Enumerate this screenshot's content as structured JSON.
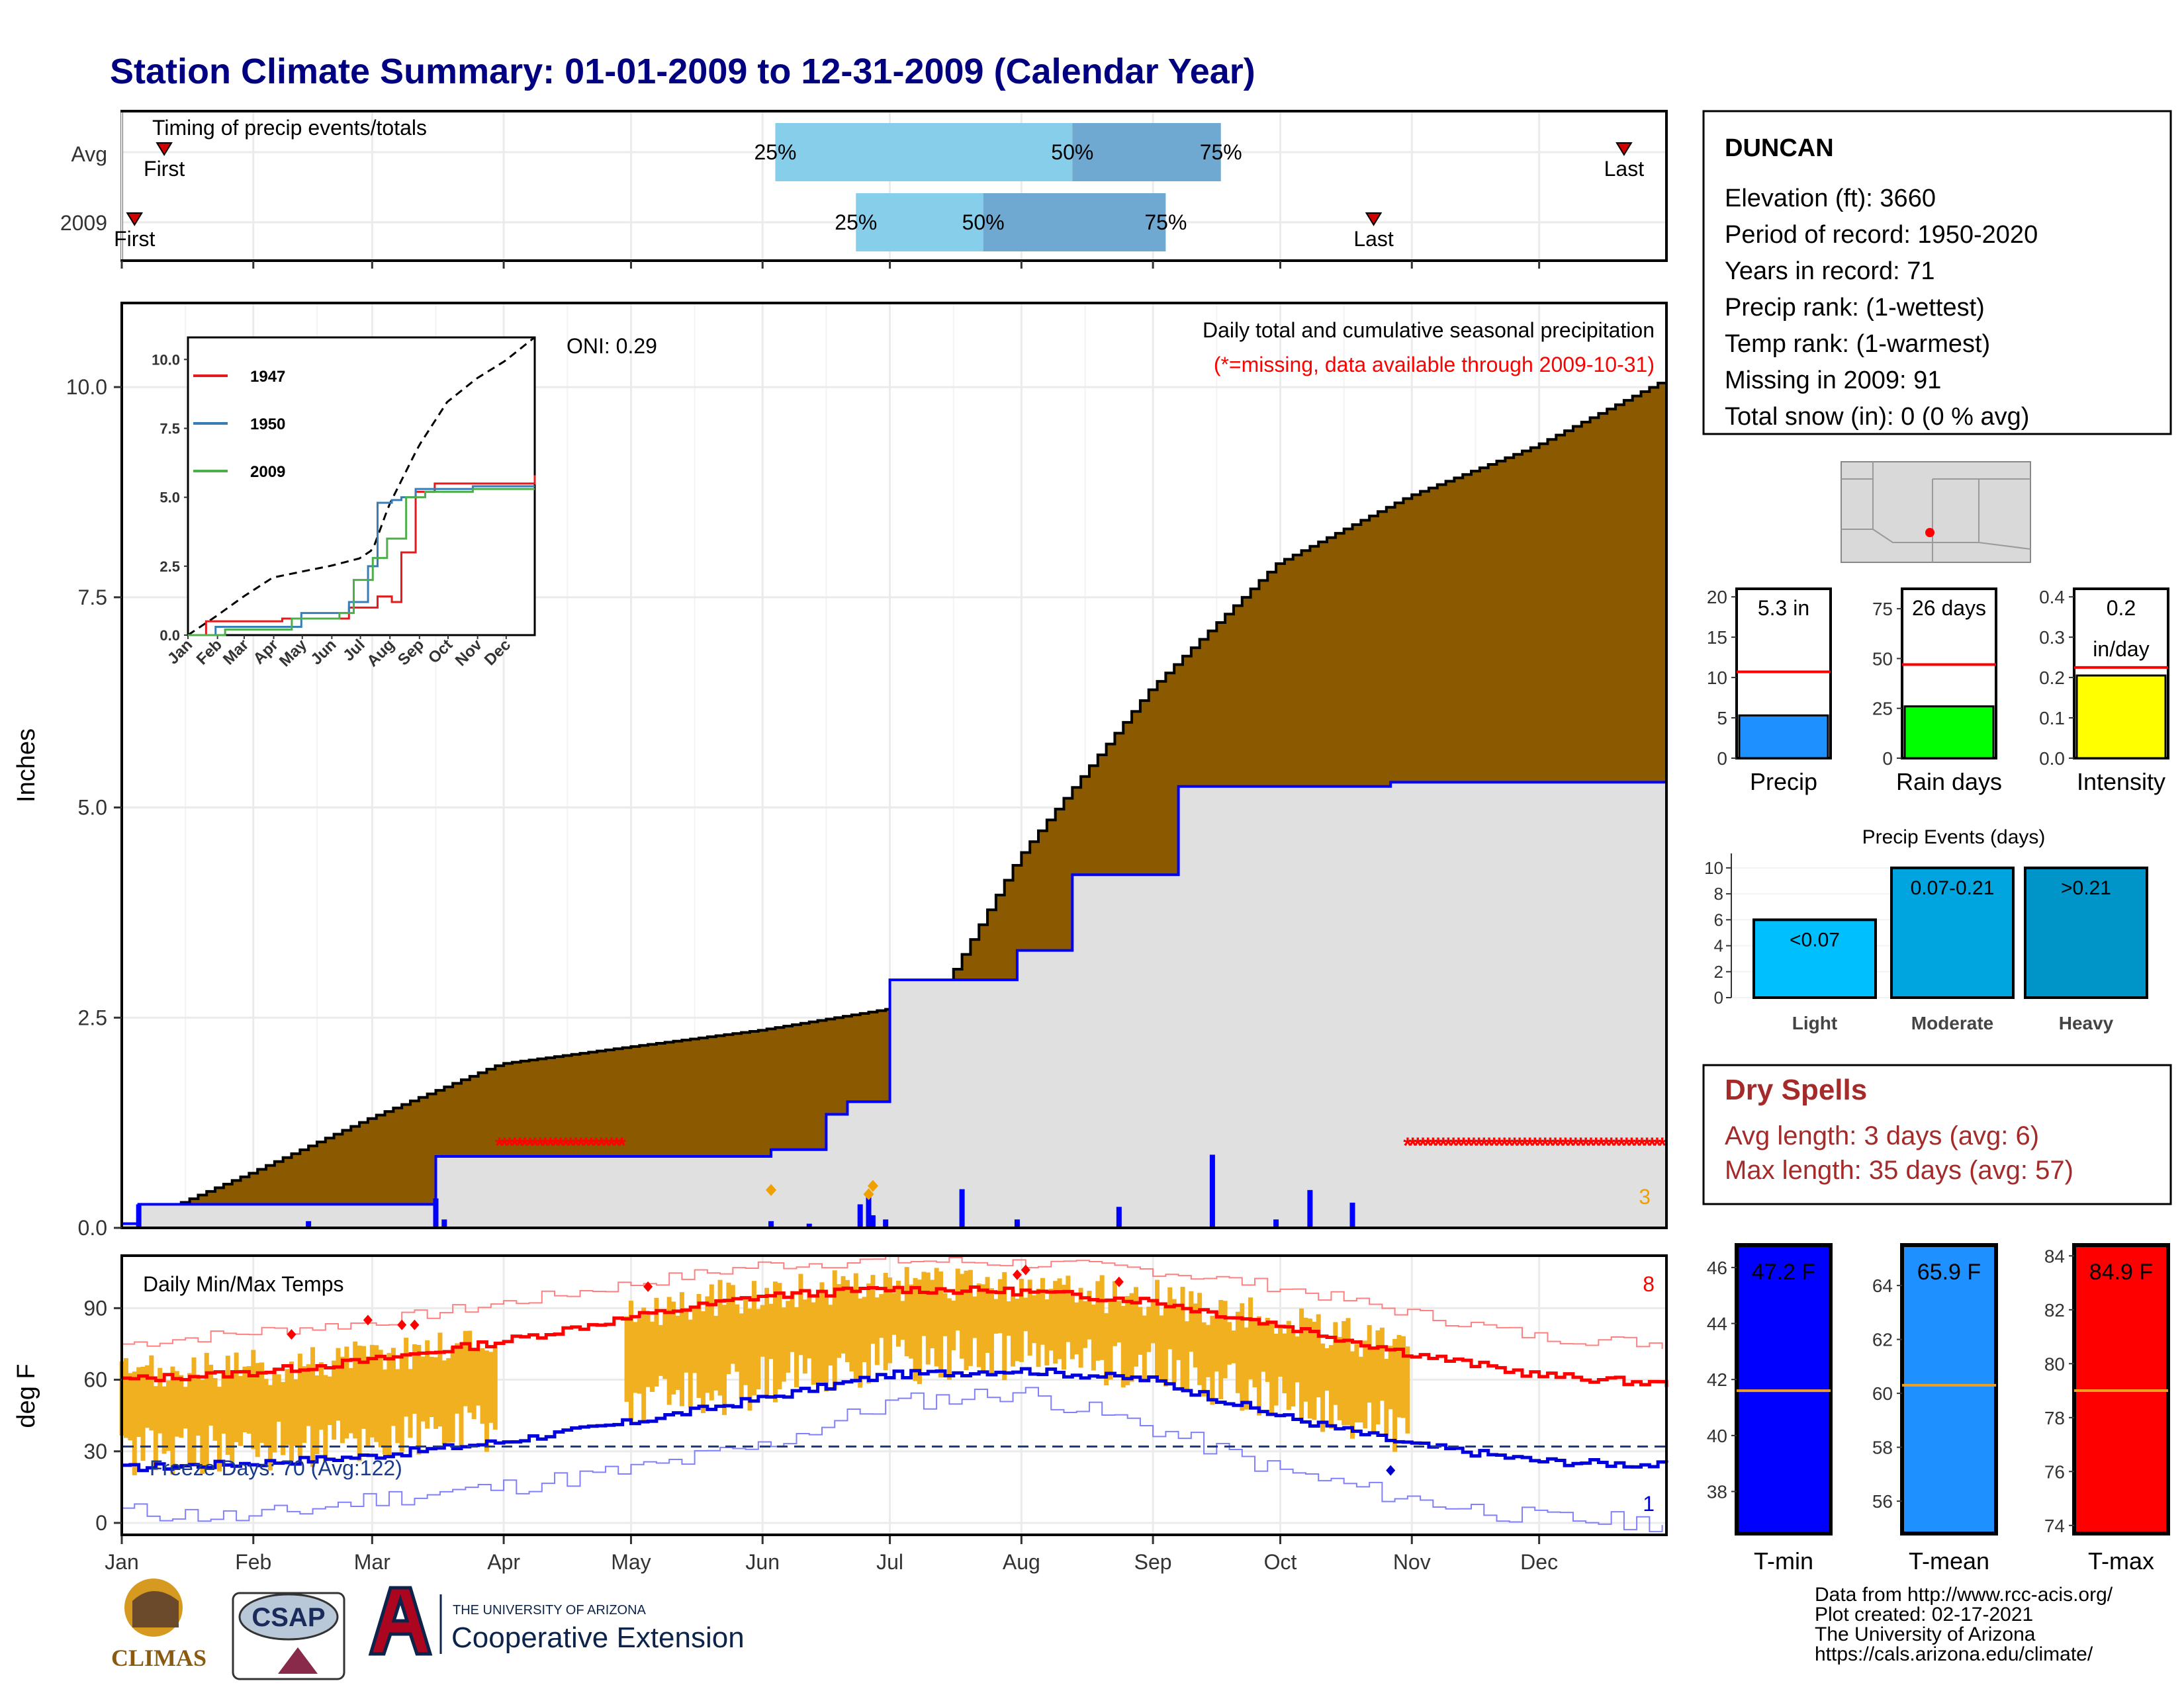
{
  "title": "Station Climate Summary: 01-01-2009 to 12-31-2009 (Calendar Year)",
  "colors": {
    "title": "#000080",
    "cum_avg": "#8B5A00",
    "cum_2009": "#e0e0e0",
    "line_2009": "#0000ff",
    "missing": "#ff0000",
    "temp_bars": "#f0b020"
  },
  "timing": {
    "label": "Timing of precip events/totals",
    "rows": [
      {
        "name": "Avg",
        "first_label": "First",
        "last_label": "Last",
        "first_doy": 11,
        "last_doy": 355,
        "p25": 155,
        "p50": 225,
        "p75": 260
      },
      {
        "name": "2009",
        "first_label": "First",
        "last_label": "Last",
        "first_doy": 4,
        "last_doy": 296,
        "p25": 174,
        "p50": 204,
        "p75": 247
      }
    ],
    "pct_labels": [
      "25%",
      "50%",
      "75%"
    ]
  },
  "months": [
    "Jan",
    "Feb",
    "Mar",
    "Apr",
    "May",
    "Jun",
    "Jul",
    "Aug",
    "Sep",
    "Oct",
    "Nov",
    "Dec"
  ],
  "precip_panel": {
    "ylabel": "Inches",
    "y_ticks": [
      "0.0",
      "2.5",
      "5.0",
      "7.5",
      "10.0"
    ],
    "oni": "ONI: 0.29",
    "subtitle": "Daily total and cumulative seasonal precipitation",
    "missing_note": "(*=missing, data available through 2009-10-31)",
    "count_label": "3"
  },
  "inset": {
    "y_ticks": [
      "0.0",
      "2.5",
      "5.0",
      "7.5",
      "10.0"
    ],
    "x_ticks": [
      "Jan",
      "Feb",
      "Mar",
      "Apr",
      "May",
      "Jun",
      "Jul",
      "Aug",
      "Sep",
      "Oct",
      "Nov",
      "Dec"
    ],
    "legend": [
      {
        "name": "1947",
        "color": "#e41a1c"
      },
      {
        "name": "1950",
        "color": "#377eb8"
      },
      {
        "name": "2009",
        "color": "#4daf4a"
      }
    ]
  },
  "temp_panel": {
    "ylabel": "deg F",
    "title": "Daily Min/Max Temps",
    "y_ticks": [
      "0",
      "30",
      "60",
      "90"
    ],
    "freeze_label": "Freeze Days: 70 (Avg:122)",
    "count_hi": "8",
    "count_lo": "1"
  },
  "station": {
    "name": "DUNCAN",
    "lines": [
      "Elevation (ft): 3660",
      "Period of record: 1950-2020",
      "Years in record: 71",
      "Precip rank:  (1-wettest)",
      "Temp rank:  (1-warmest)",
      "Missing in 2009: 91",
      "Total snow (in): 0 (0 % avg)"
    ]
  },
  "mini_bars": [
    {
      "label": "Precip",
      "value_text": "5.3 in",
      "value": 5.3,
      "avg": 10.7,
      "max": 21,
      "ticks": [
        "0",
        "5",
        "10",
        "15",
        "20"
      ],
      "tick_vals": [
        0,
        5,
        10,
        15,
        20
      ],
      "color": "#1e90ff"
    },
    {
      "label": "Rain days",
      "value_text": "26 days",
      "value": 26,
      "avg": 47,
      "max": 85,
      "ticks": [
        "0",
        "25",
        "50",
        "75"
      ],
      "tick_vals": [
        0,
        25,
        50,
        75
      ],
      "color": "#00ff00"
    },
    {
      "label": "Intensity",
      "value_text": "0.2",
      "value_text2": "in/day",
      "value": 0.205,
      "avg": 0.225,
      "max": 0.42,
      "ticks": [
        "0.0",
        "0.1",
        "0.2",
        "0.3",
        "0.4"
      ],
      "tick_vals": [
        0,
        0.1,
        0.2,
        0.3,
        0.4
      ],
      "color": "#ffff00"
    }
  ],
  "events": {
    "title": "Precip Events (days)",
    "y_ticks": [
      "0",
      "2",
      "4",
      "6",
      "8",
      "10"
    ],
    "bars": [
      {
        "label": "Light",
        "text": "<0.07",
        "value": 6,
        "color": "#00bfff"
      },
      {
        "label": "Moderate",
        "text": "0.07-0.21",
        "value": 10,
        "color": "#00a5e0"
      },
      {
        "label": "Heavy",
        "text": ">0.21",
        "value": 10,
        "color": "#0095c8"
      }
    ]
  },
  "dry_spells": {
    "title": "Dry Spells",
    "avg": "Avg length: 3 days (avg: 6)",
    "max": "Max length: 35 days (avg: 57)"
  },
  "temp_bars": [
    {
      "label": "T-min",
      "value_text": "47.2 F",
      "value": 47.2,
      "avg": 41.6,
      "min": 36.5,
      "max": 46.8,
      "ticks": [
        "38",
        "40",
        "42",
        "44",
        "46"
      ],
      "tick_vals": [
        38,
        40,
        42,
        44,
        46
      ],
      "color": "#0000ff"
    },
    {
      "label": "T-mean",
      "value_text": "65.9 F",
      "value": 65.9,
      "avg": 60.3,
      "min": 54.8,
      "max": 65.5,
      "ticks": [
        "56",
        "58",
        "60",
        "62",
        "64"
      ],
      "tick_vals": [
        56,
        58,
        60,
        62,
        64
      ],
      "color": "#1e90ff"
    },
    {
      "label": "T-max",
      "value_text": "84.9 F",
      "value": 84.9,
      "avg": 79.0,
      "min": 73.7,
      "max": 84.4,
      "ticks": [
        "74",
        "76",
        "78",
        "80",
        "82",
        "84"
      ],
      "tick_vals": [
        74,
        76,
        78,
        80,
        82,
        84
      ],
      "color": "#ff0000"
    }
  ],
  "logos": {
    "climas": "CLIMAS",
    "csap": "CSAP",
    "ua_small": "THE UNIVERSITY OF ARIZONA",
    "ua_big": "Cooperative Extension"
  },
  "footer": [
    "Data from http://www.rcc-acis.org/",
    "Plot created: 02-17-2021",
    "The University of Arizona",
    "https://cals.arizona.edu/climate/"
  ],
  "chart_data": {
    "type": "area",
    "title": "Station Climate Summary: 01-01-2009 to 12-31-2009 (Calendar Year)",
    "ylabel": "Inches",
    "ylim": [
      0,
      11
    ],
    "x_unit": "day of year",
    "series": [
      {
        "name": "",
        "type": "area",
        "x": [
          1,
          31,
          59,
          90,
          120,
          151,
          181,
          195,
          212,
          243,
          273,
          304,
          334,
          365
        ],
        "values": [
          0.0,
          0.65,
          1.3,
          1.95,
          2.15,
          2.35,
          2.6,
          2.9,
          4.4,
          6.4,
          7.9,
          8.7,
          9.3,
          10.1
        ]
      },
      {
        "name": "",
        "type": "step",
        "x": [
          1,
          5,
          45,
          75,
          102,
          154,
          167,
          172,
          182,
          199,
          212,
          225,
          250,
          275,
          300,
          365
        ],
        "values": [
          0.05,
          0.28,
          0.28,
          0.85,
          0.85,
          0.93,
          1.35,
          1.5,
          2.95,
          2.95,
          3.3,
          4.2,
          5.25,
          5.25,
          5.3,
          5.3
        ]
      },
      {
        "name": "",
        "type": "bar",
        "x": [
          5,
          45,
          75,
          77,
          154,
          163,
          175,
          177,
          178,
          181,
          199,
          212,
          236,
          258,
          273,
          281,
          291
        ],
        "values": [
          0.28,
          0.08,
          0.35,
          0.1,
          0.08,
          0.05,
          0.28,
          0.4,
          0.15,
          0.1,
          0.46,
          0.1,
          0.25,
          0.87,
          0.1,
          0.45,
          0.3
        ]
      }
    ],
    "missing_ranges": [
      [
        90,
        120
      ],
      [
        304,
        365
      ]
    ],
    "temperature": {
      "ylabel": "deg F",
      "ylim": [
        -5,
        112
      ],
      "freeze_line": 32,
      "avg_max": {
        "x": [
          1,
          31,
          59,
          90,
          120,
          151,
          181,
          212,
          243,
          273,
          304,
          334,
          365
        ],
        "values": [
          60,
          63,
          68,
          76,
          86,
          95,
          98,
          97,
          93,
          83,
          71,
          62,
          58
        ]
      },
      "avg_min": {
        "x": [
          1,
          31,
          59,
          90,
          120,
          151,
          181,
          212,
          243,
          273,
          304,
          334,
          365
        ],
        "values": [
          23,
          25,
          28,
          34,
          42,
          52,
          62,
          64,
          60,
          45,
          33,
          26,
          24
        ]
      },
      "record_max": {
        "x": [
          1,
          31,
          59,
          90,
          120,
          151,
          181,
          212,
          243,
          273,
          304,
          334,
          365
        ],
        "values": [
          75,
          80,
          84,
          92,
          100,
          108,
          110,
          109,
          106,
          99,
          88,
          78,
          75
        ]
      },
      "record_min": {
        "x": [
          1,
          31,
          59,
          90,
          120,
          151,
          181,
          212,
          243,
          273,
          304,
          334,
          365
        ],
        "values": [
          5,
          2,
          10,
          15,
          22,
          32,
          50,
          55,
          40,
          22,
          10,
          2,
          0
        ]
      }
    }
  }
}
